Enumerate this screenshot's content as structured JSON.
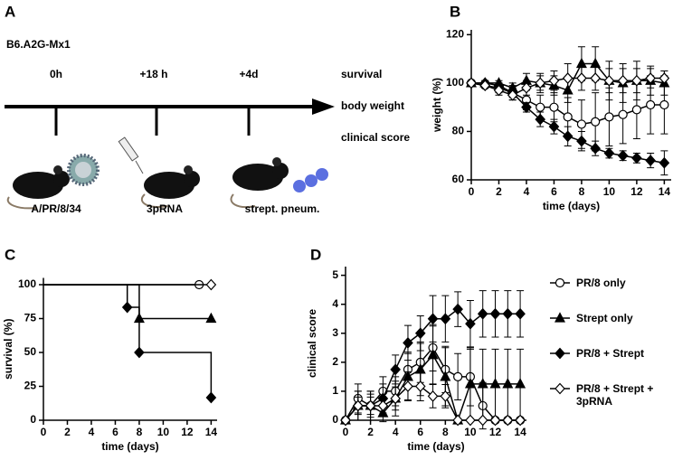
{
  "panel_a": {
    "label": "A",
    "strain": "B6.A2G-Mx1",
    "timepoints": [
      "0h",
      "+18 h",
      "+4d"
    ],
    "readouts": [
      "survival",
      "body weight",
      "clinical score"
    ],
    "treatments": [
      "A/PR/8/34",
      "3pRNA",
      "strept. pneum."
    ]
  },
  "chart_data": [
    {
      "type": "line",
      "label": "B",
      "xlabel": "time (days)",
      "ylabel": "weight (%)",
      "x": [
        0,
        1,
        2,
        3,
        4,
        5,
        6,
        7,
        8,
        9,
        10,
        11,
        12,
        13,
        14
      ],
      "xlim": [
        0,
        14.5
      ],
      "ylim": [
        60,
        122
      ],
      "xticks": [
        0,
        2,
        4,
        6,
        8,
        10,
        12,
        14
      ],
      "yticks": [
        60,
        80,
        100,
        120
      ],
      "series": [
        {
          "marker": "circle-open",
          "values": [
            100,
            99,
            98,
            96,
            93,
            90,
            90,
            86,
            83,
            84,
            86,
            87,
            89,
            91,
            91
          ],
          "errors": [
            0,
            1,
            2,
            3,
            4,
            5,
            6,
            8,
            10,
            12,
            12,
            12,
            12,
            12,
            12
          ]
        },
        {
          "marker": "triangle",
          "values": [
            100,
            100,
            100,
            98,
            101,
            100,
            99,
            97,
            108,
            108,
            101,
            100,
            101,
            101,
            100
          ],
          "errors": [
            0,
            1,
            1,
            2,
            3,
            4,
            4,
            5,
            7,
            7,
            8,
            8,
            8,
            6,
            5
          ]
        },
        {
          "marker": "diamond",
          "values": [
            100,
            100,
            99,
            96,
            90,
            85,
            82,
            78,
            76,
            73,
            71,
            70,
            69,
            68,
            67
          ],
          "errors": [
            0,
            1,
            1,
            2,
            2,
            3,
            3,
            4,
            4,
            3,
            2,
            2,
            2,
            3,
            5
          ]
        },
        {
          "marker": "diamond-open",
          "values": [
            100,
            99,
            97,
            95,
            98,
            100,
            101,
            102,
            102,
            102,
            101,
            101,
            101,
            102,
            102
          ],
          "errors": [
            0,
            1,
            2,
            2,
            3,
            3,
            4,
            6,
            5,
            5,
            5,
            5,
            5,
            4,
            3
          ]
        }
      ]
    },
    {
      "type": "step",
      "label": "C",
      "xlabel": "time (days)",
      "ylabel": "survival (%)",
      "xlim": [
        0,
        14.5
      ],
      "ylim": [
        0,
        105
      ],
      "xticks": [
        0,
        2,
        4,
        6,
        8,
        10,
        12,
        14
      ],
      "yticks": [
        0,
        25,
        50,
        75,
        100
      ],
      "series": [
        {
          "marker": "circle-open",
          "x": [
            0,
            13
          ],
          "values": [
            100,
            100
          ]
        },
        {
          "marker": "triangle",
          "x": [
            0,
            8,
            14
          ],
          "values": [
            100,
            75,
            75
          ]
        },
        {
          "marker": "diamond",
          "x": [
            0,
            7,
            8,
            14
          ],
          "values": [
            100,
            83.3,
            50,
            16.7
          ]
        },
        {
          "marker": "diamond-open",
          "x": [
            0,
            14
          ],
          "values": [
            100,
            100
          ]
        }
      ]
    },
    {
      "type": "line",
      "label": "D",
      "xlabel": "time (days)",
      "ylabel": "clinical score",
      "x": [
        0,
        1,
        2,
        3,
        4,
        5,
        6,
        7,
        8,
        9,
        10,
        11,
        12,
        13,
        14
      ],
      "xlim": [
        0,
        14.5
      ],
      "ylim": [
        0,
        5.3
      ],
      "xticks": [
        0,
        2,
        4,
        6,
        8,
        10,
        12,
        14
      ],
      "yticks": [
        0,
        1,
        2,
        3,
        4,
        5
      ],
      "series": [
        {
          "name": "PR/8 only",
          "marker": "circle-open",
          "values": [
            0,
            0.75,
            0.5,
            1,
            1,
            1.75,
            2,
            2.5,
            1.75,
            1.5,
            1.5,
            0.5,
            0,
            0,
            0
          ],
          "errors": [
            0,
            0.5,
            0.4,
            0.5,
            0.5,
            0.6,
            0.7,
            0.8,
            0.8,
            0.8,
            1,
            0.8,
            0,
            0,
            0
          ]
        },
        {
          "name": "Strept only",
          "marker": "triangle",
          "values": [
            0,
            0.5,
            0.5,
            0.25,
            0.75,
            1.5,
            1.75,
            2.25,
            1.5,
            0,
            1.25,
            1.25,
            1.25,
            1.25,
            1.25
          ],
          "errors": [
            0,
            0.5,
            0.5,
            0.3,
            0.6,
            0.8,
            0.9,
            1,
            1,
            0,
            1.2,
            1.2,
            1.2,
            1.2,
            1.2
          ]
        },
        {
          "name": "PR/8 + Strept",
          "marker": "diamond",
          "values": [
            0,
            0.5,
            0.5,
            0.75,
            1.75,
            2.67,
            3,
            3.5,
            3.5,
            3.83,
            3.33,
            3.67,
            3.67,
            3.67,
            3.67
          ],
          "errors": [
            0,
            0.5,
            0.5,
            0.5,
            0.5,
            0.6,
            0.6,
            0.8,
            0.8,
            0.6,
            0.8,
            0.8,
            0.8,
            0.8,
            0.8
          ]
        },
        {
          "name": "PR/8 + Strept + 3pRNA",
          "marker": "diamond-open",
          "values": [
            0,
            0.5,
            0.5,
            0.5,
            0.75,
            1.17,
            1.17,
            0.83,
            0.83,
            0,
            0,
            0,
            0,
            0,
            0
          ],
          "errors": [
            0,
            0.3,
            0.3,
            0.3,
            0.4,
            0.5,
            0.5,
            0.4,
            0.4,
            0,
            0,
            0,
            0,
            0,
            0
          ]
        }
      ]
    }
  ]
}
